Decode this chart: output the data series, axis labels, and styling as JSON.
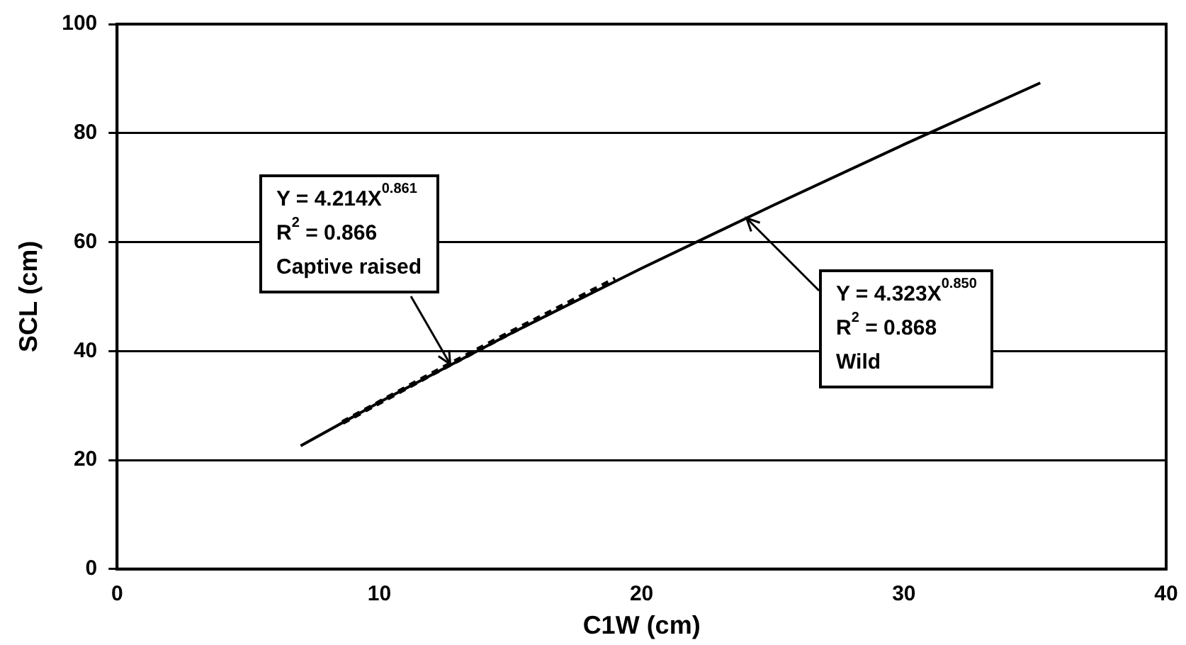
{
  "chart_data": {
    "type": "line",
    "xlabel": "C1W (cm)",
    "ylabel": "SCL (cm)",
    "xlim": [
      0,
      40
    ],
    "xticks": [
      0,
      10,
      20,
      30,
      40
    ],
    "ylim": [
      0,
      100
    ],
    "yticks": [
      0,
      20,
      40,
      60,
      80,
      100
    ],
    "grid": "y",
    "legend": false,
    "marker": "none",
    "series": [
      {
        "color": "#000000",
        "line_style": "solid",
        "x": [
          7,
          10,
          15,
          20,
          25,
          30,
          35.2
        ],
        "values": [
          22.6,
          30.6,
          43.2,
          55.2,
          66.7,
          77.9,
          89.2
        ]
      },
      {
        "color": "#000000",
        "line_style": "dotted",
        "x": [
          8.6,
          12,
          15,
          19
        ],
        "values": [
          26.9,
          35.8,
          43.4,
          53.2
        ]
      }
    ],
    "annotations": [
      "Y = 4.214X$^{0.861}$",
      "R$^{2}$ = 0.866",
      {
        "text": "Captive raised",
        "x": 12.7,
        "y": 37.6
      },
      {
        "text": "Y = 4.323X$^{0.850}$",
        "x": 24,
        "y": 64.4
      },
      "R$^{2}$ = 0.868",
      "Wild"
    ]
  }
}
